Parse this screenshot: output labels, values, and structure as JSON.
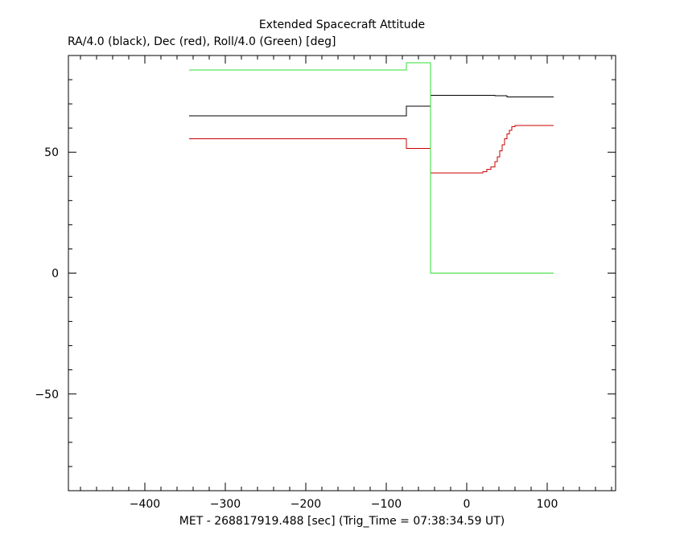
{
  "chart_data": {
    "type": "line",
    "title": "Extended Spacecraft Attitude",
    "subtitle": "RA/4.0 (black), Dec (red), Roll/4.0 (Green) [deg]",
    "xlabel": "MET - 268817919.488 [sec] (Trig_Time = 07:38:34.59 UT)",
    "ylabel": "",
    "xlim": [
      -495,
      185
    ],
    "ylim": [
      -90,
      90
    ],
    "x_ticks": [
      -400,
      -300,
      -200,
      -100,
      0,
      100
    ],
    "y_ticks": [
      -50,
      0,
      50
    ],
    "grid": false,
    "legend": "none",
    "series": [
      {
        "color": "#000000",
        "step": true,
        "x": [
          -345,
          -75,
          -45,
          35,
          50,
          108
        ],
        "y": [
          65,
          69,
          73.5,
          73.3,
          72.8,
          72.8
        ]
      },
      {
        "color": "#cc0000",
        "step": true,
        "x": [
          -345,
          -75,
          -45,
          20,
          25,
          30,
          35,
          38,
          41,
          44,
          47,
          50,
          53,
          56,
          60,
          108
        ],
        "y": [
          55.5,
          51.5,
          41.5,
          42,
          43,
          44,
          46,
          48,
          50.5,
          53,
          55.5,
          57.5,
          59,
          60.5,
          61,
          61
        ]
      },
      {
        "color": "#33dd33",
        "step": true,
        "x": [
          -345,
          -75,
          -45,
          108
        ],
        "y": [
          84,
          87,
          0,
          0
        ]
      }
    ]
  }
}
